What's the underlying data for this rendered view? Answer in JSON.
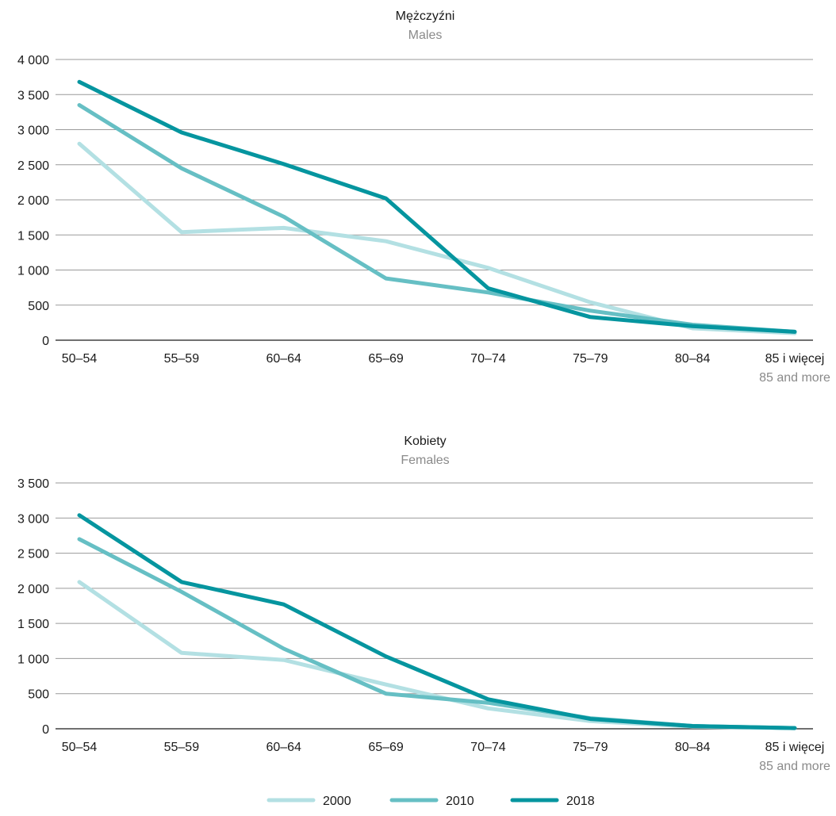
{
  "chart_data": [
    {
      "type": "line",
      "title": "Mężczyźni",
      "subtitle": "Males",
      "categories": [
        "50–54",
        "55–59",
        "60–64",
        "65–69",
        "70–74",
        "75–79",
        "80–84",
        "85 i więcej"
      ],
      "category_sublabels": [
        "",
        "",
        "",
        "",
        "",
        "",
        "",
        "85 and more"
      ],
      "ylim": [
        0,
        4000
      ],
      "yticks": [
        0,
        500,
        1000,
        1500,
        2000,
        2500,
        3000,
        3500,
        4000
      ],
      "ytick_labels": [
        "0",
        "500",
        "1 000",
        "1 500",
        "2 000",
        "2 500",
        "3 000",
        "3 500",
        "4 000"
      ],
      "grid": true,
      "series": [
        {
          "name": "2000",
          "color": "#b3e0e3",
          "values": [
            2800,
            1540,
            1600,
            1410,
            1030,
            540,
            170,
            100
          ]
        },
        {
          "name": "2010",
          "color": "#66bfc4",
          "values": [
            3350,
            2450,
            1760,
            880,
            680,
            420,
            220,
            120
          ]
        },
        {
          "name": "2018",
          "color": "#05959f",
          "values": [
            3680,
            2960,
            2510,
            2020,
            740,
            330,
            200,
            120
          ]
        }
      ]
    },
    {
      "type": "line",
      "title": "Kobiety",
      "subtitle": "Females",
      "categories": [
        "50–54",
        "55–59",
        "60–64",
        "65–69",
        "70–74",
        "75–79",
        "80–84",
        "85 i więcej"
      ],
      "category_sublabels": [
        "",
        "",
        "",
        "",
        "",
        "",
        "",
        "85 and more"
      ],
      "ylim": [
        0,
        3500
      ],
      "yticks": [
        0,
        500,
        1000,
        1500,
        2000,
        2500,
        3000,
        3500
      ],
      "ytick_labels": [
        "0",
        "500",
        "1 000",
        "1 500",
        "2 000",
        "2 500",
        "3 000",
        "3 500"
      ],
      "grid": true,
      "series": [
        {
          "name": "2000",
          "color": "#b3e0e3",
          "values": [
            2090,
            1080,
            980,
            630,
            290,
            110,
            30,
            10
          ]
        },
        {
          "name": "2010",
          "color": "#66bfc4",
          "values": [
            2700,
            1950,
            1140,
            500,
            370,
            150,
            40,
            10
          ]
        },
        {
          "name": "2018",
          "color": "#05959f",
          "values": [
            3040,
            2090,
            1770,
            1030,
            420,
            140,
            40,
            10
          ]
        }
      ]
    }
  ],
  "legend": {
    "placement": "bottom-center",
    "items": [
      {
        "label": "2000",
        "color": "#b3e0e3"
      },
      {
        "label": "2010",
        "color": "#66bfc4"
      },
      {
        "label": "2018",
        "color": "#05959f"
      }
    ]
  }
}
